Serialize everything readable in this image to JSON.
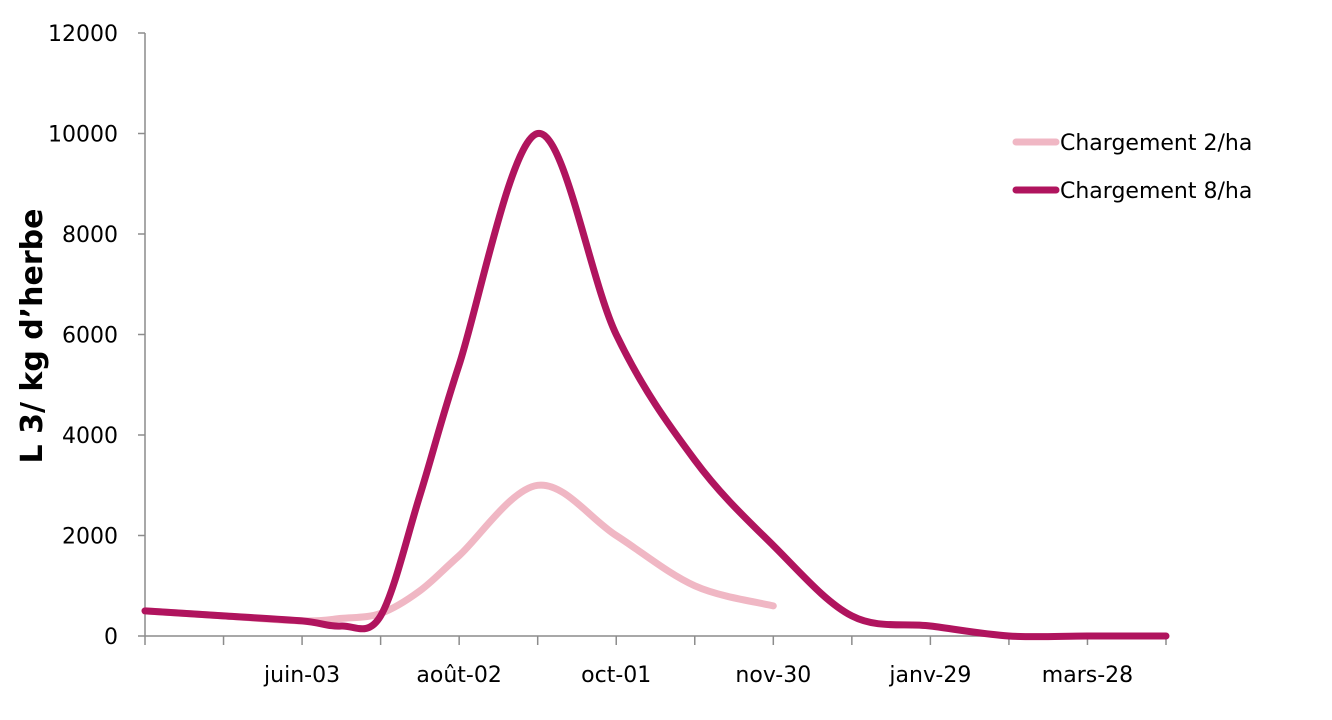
{
  "chart_data": {
    "type": "line",
    "title": "",
    "xlabel": "",
    "ylabel": "L 3/ kg d’herbe",
    "ylim": [
      0,
      12000
    ],
    "yticks": [
      0,
      2000,
      4000,
      6000,
      8000,
      10000,
      12000
    ],
    "xticks": [
      "juin-03",
      "août-02",
      "oct-01",
      "nov-30",
      "janv-29",
      "mars-28"
    ],
    "x_tick_index_range": [
      -1,
      12
    ],
    "x_tick_index": [
      1,
      3,
      5,
      7,
      9,
      11
    ],
    "grid": false,
    "legend_position": "top-right",
    "series": [
      {
        "name": "Chargement 2/ha",
        "color": "#f0b7c4",
        "x": [
          -1,
          0,
          1,
          1.5,
          2,
          2.5,
          3,
          4,
          5,
          6,
          7
        ],
        "y": [
          500,
          400,
          300,
          350,
          450,
          900,
          1600,
          3000,
          2000,
          1000,
          600
        ]
      },
      {
        "name": "Chargement 8/ha",
        "color": "#b0145e",
        "x": [
          -1,
          0,
          1,
          1.5,
          2,
          2.5,
          3,
          4,
          5,
          6,
          7,
          8,
          9,
          10,
          11,
          12
        ],
        "y": [
          500,
          400,
          300,
          200,
          400,
          2800,
          5400,
          10000,
          6000,
          3500,
          1800,
          400,
          200,
          0,
          0,
          0
        ]
      }
    ]
  }
}
